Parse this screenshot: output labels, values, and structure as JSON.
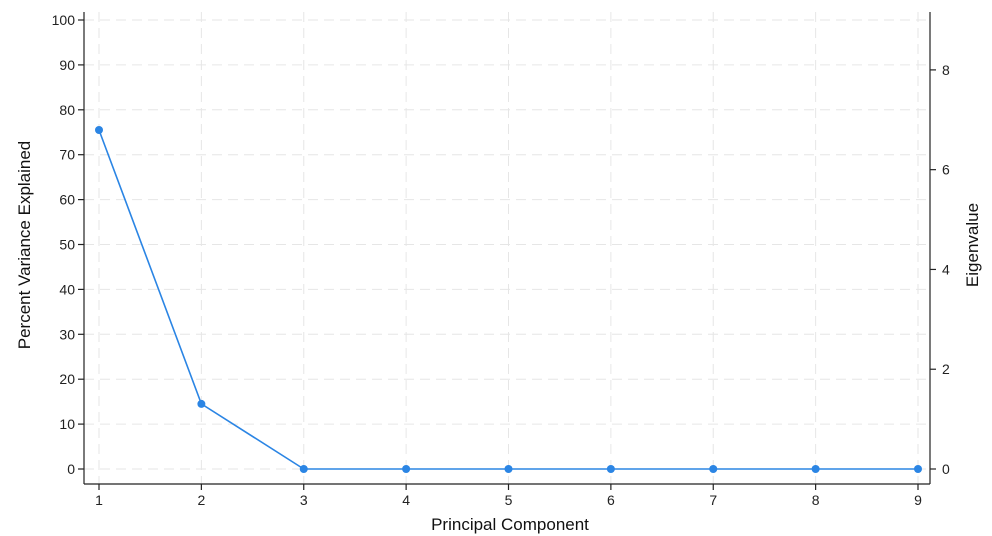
{
  "chart_data": {
    "type": "line",
    "xlabel": "Principal Component",
    "ylabel": "Percent Variance Explained",
    "y2label": "Eigenvalue",
    "x": [
      1,
      2,
      3,
      4,
      5,
      6,
      7,
      8,
      9
    ],
    "series": [
      {
        "values": [
          75.5,
          14.5,
          0,
          0,
          0,
          0,
          0,
          0,
          0
        ],
        "color": "#2b85e4"
      }
    ],
    "xlim": [
      1,
      9
    ],
    "ylim": [
      0,
      100
    ],
    "y2lim": [
      0,
      9
    ],
    "xticks": [
      "1",
      "2",
      "3",
      "4",
      "5",
      "6",
      "7",
      "8",
      "9"
    ],
    "yticks": [
      "0",
      "10",
      "20",
      "30",
      "40",
      "50",
      "60",
      "70",
      "80",
      "90",
      "100"
    ],
    "y2ticks": [
      "0",
      "2",
      "4",
      "6",
      "8"
    ],
    "grid": true
  }
}
